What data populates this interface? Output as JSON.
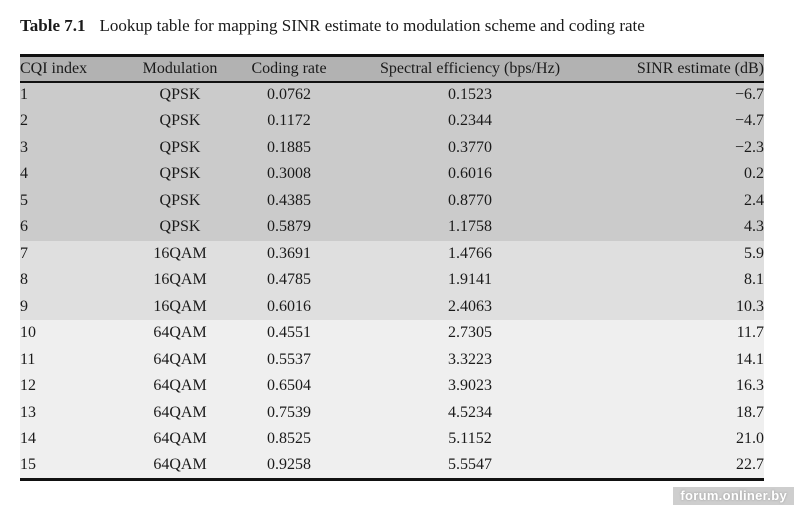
{
  "caption": {
    "label": "Table 7.1",
    "text": "Lookup table for mapping SINR estimate to modulation scheme and coding rate"
  },
  "table": {
    "columns": [
      "CQI index",
      "Modulation",
      "Coding rate",
      "Spectral efficiency (bps/Hz)",
      "SINR estimate (dB)"
    ],
    "rows": [
      {
        "cqi": "1",
        "modulation": "QPSK",
        "coding_rate": "0.0762",
        "spectral_efficiency": "0.1523",
        "sinr": "−6.7",
        "band": "qpsk"
      },
      {
        "cqi": "2",
        "modulation": "QPSK",
        "coding_rate": "0.1172",
        "spectral_efficiency": "0.2344",
        "sinr": "−4.7",
        "band": "qpsk"
      },
      {
        "cqi": "3",
        "modulation": "QPSK",
        "coding_rate": "0.1885",
        "spectral_efficiency": "0.3770",
        "sinr": "−2.3",
        "band": "qpsk"
      },
      {
        "cqi": "4",
        "modulation": "QPSK",
        "coding_rate": "0.3008",
        "spectral_efficiency": "0.6016",
        "sinr": "0.2",
        "band": "qpsk"
      },
      {
        "cqi": "5",
        "modulation": "QPSK",
        "coding_rate": "0.4385",
        "spectral_efficiency": "0.8770",
        "sinr": "2.4",
        "band": "qpsk"
      },
      {
        "cqi": "6",
        "modulation": "QPSK",
        "coding_rate": "0.5879",
        "spectral_efficiency": "1.1758",
        "sinr": "4.3",
        "band": "qpsk"
      },
      {
        "cqi": "7",
        "modulation": "16QAM",
        "coding_rate": "0.3691",
        "spectral_efficiency": "1.4766",
        "sinr": "5.9",
        "band": "qam16"
      },
      {
        "cqi": "8",
        "modulation": "16QAM",
        "coding_rate": "0.4785",
        "spectral_efficiency": "1.9141",
        "sinr": "8.1",
        "band": "qam16"
      },
      {
        "cqi": "9",
        "modulation": "16QAM",
        "coding_rate": "0.6016",
        "spectral_efficiency": "2.4063",
        "sinr": "10.3",
        "band": "qam16"
      },
      {
        "cqi": "10",
        "modulation": "64QAM",
        "coding_rate": "0.4551",
        "spectral_efficiency": "2.7305",
        "sinr": "11.7",
        "band": "qam64"
      },
      {
        "cqi": "11",
        "modulation": "64QAM",
        "coding_rate": "0.5537",
        "spectral_efficiency": "3.3223",
        "sinr": "14.1",
        "band": "qam64"
      },
      {
        "cqi": "12",
        "modulation": "64QAM",
        "coding_rate": "0.6504",
        "spectral_efficiency": "3.9023",
        "sinr": "16.3",
        "band": "qam64"
      },
      {
        "cqi": "13",
        "modulation": "64QAM",
        "coding_rate": "0.7539",
        "spectral_efficiency": "4.5234",
        "sinr": "18.7",
        "band": "qam64"
      },
      {
        "cqi": "14",
        "modulation": "64QAM",
        "coding_rate": "0.8525",
        "spectral_efficiency": "5.1152",
        "sinr": "21.0",
        "band": "qam64"
      },
      {
        "cqi": "15",
        "modulation": "64QAM",
        "coding_rate": "0.9258",
        "spectral_efficiency": "5.5547",
        "sinr": "22.7",
        "band": "qam64"
      }
    ],
    "band_colors": {
      "header": "#b2b2b2",
      "qpsk": "#cbcbcb",
      "qam16": "#dfdfdf",
      "qam64": "#efefef"
    }
  },
  "watermark": {
    "text": "forum.onliner.by"
  }
}
